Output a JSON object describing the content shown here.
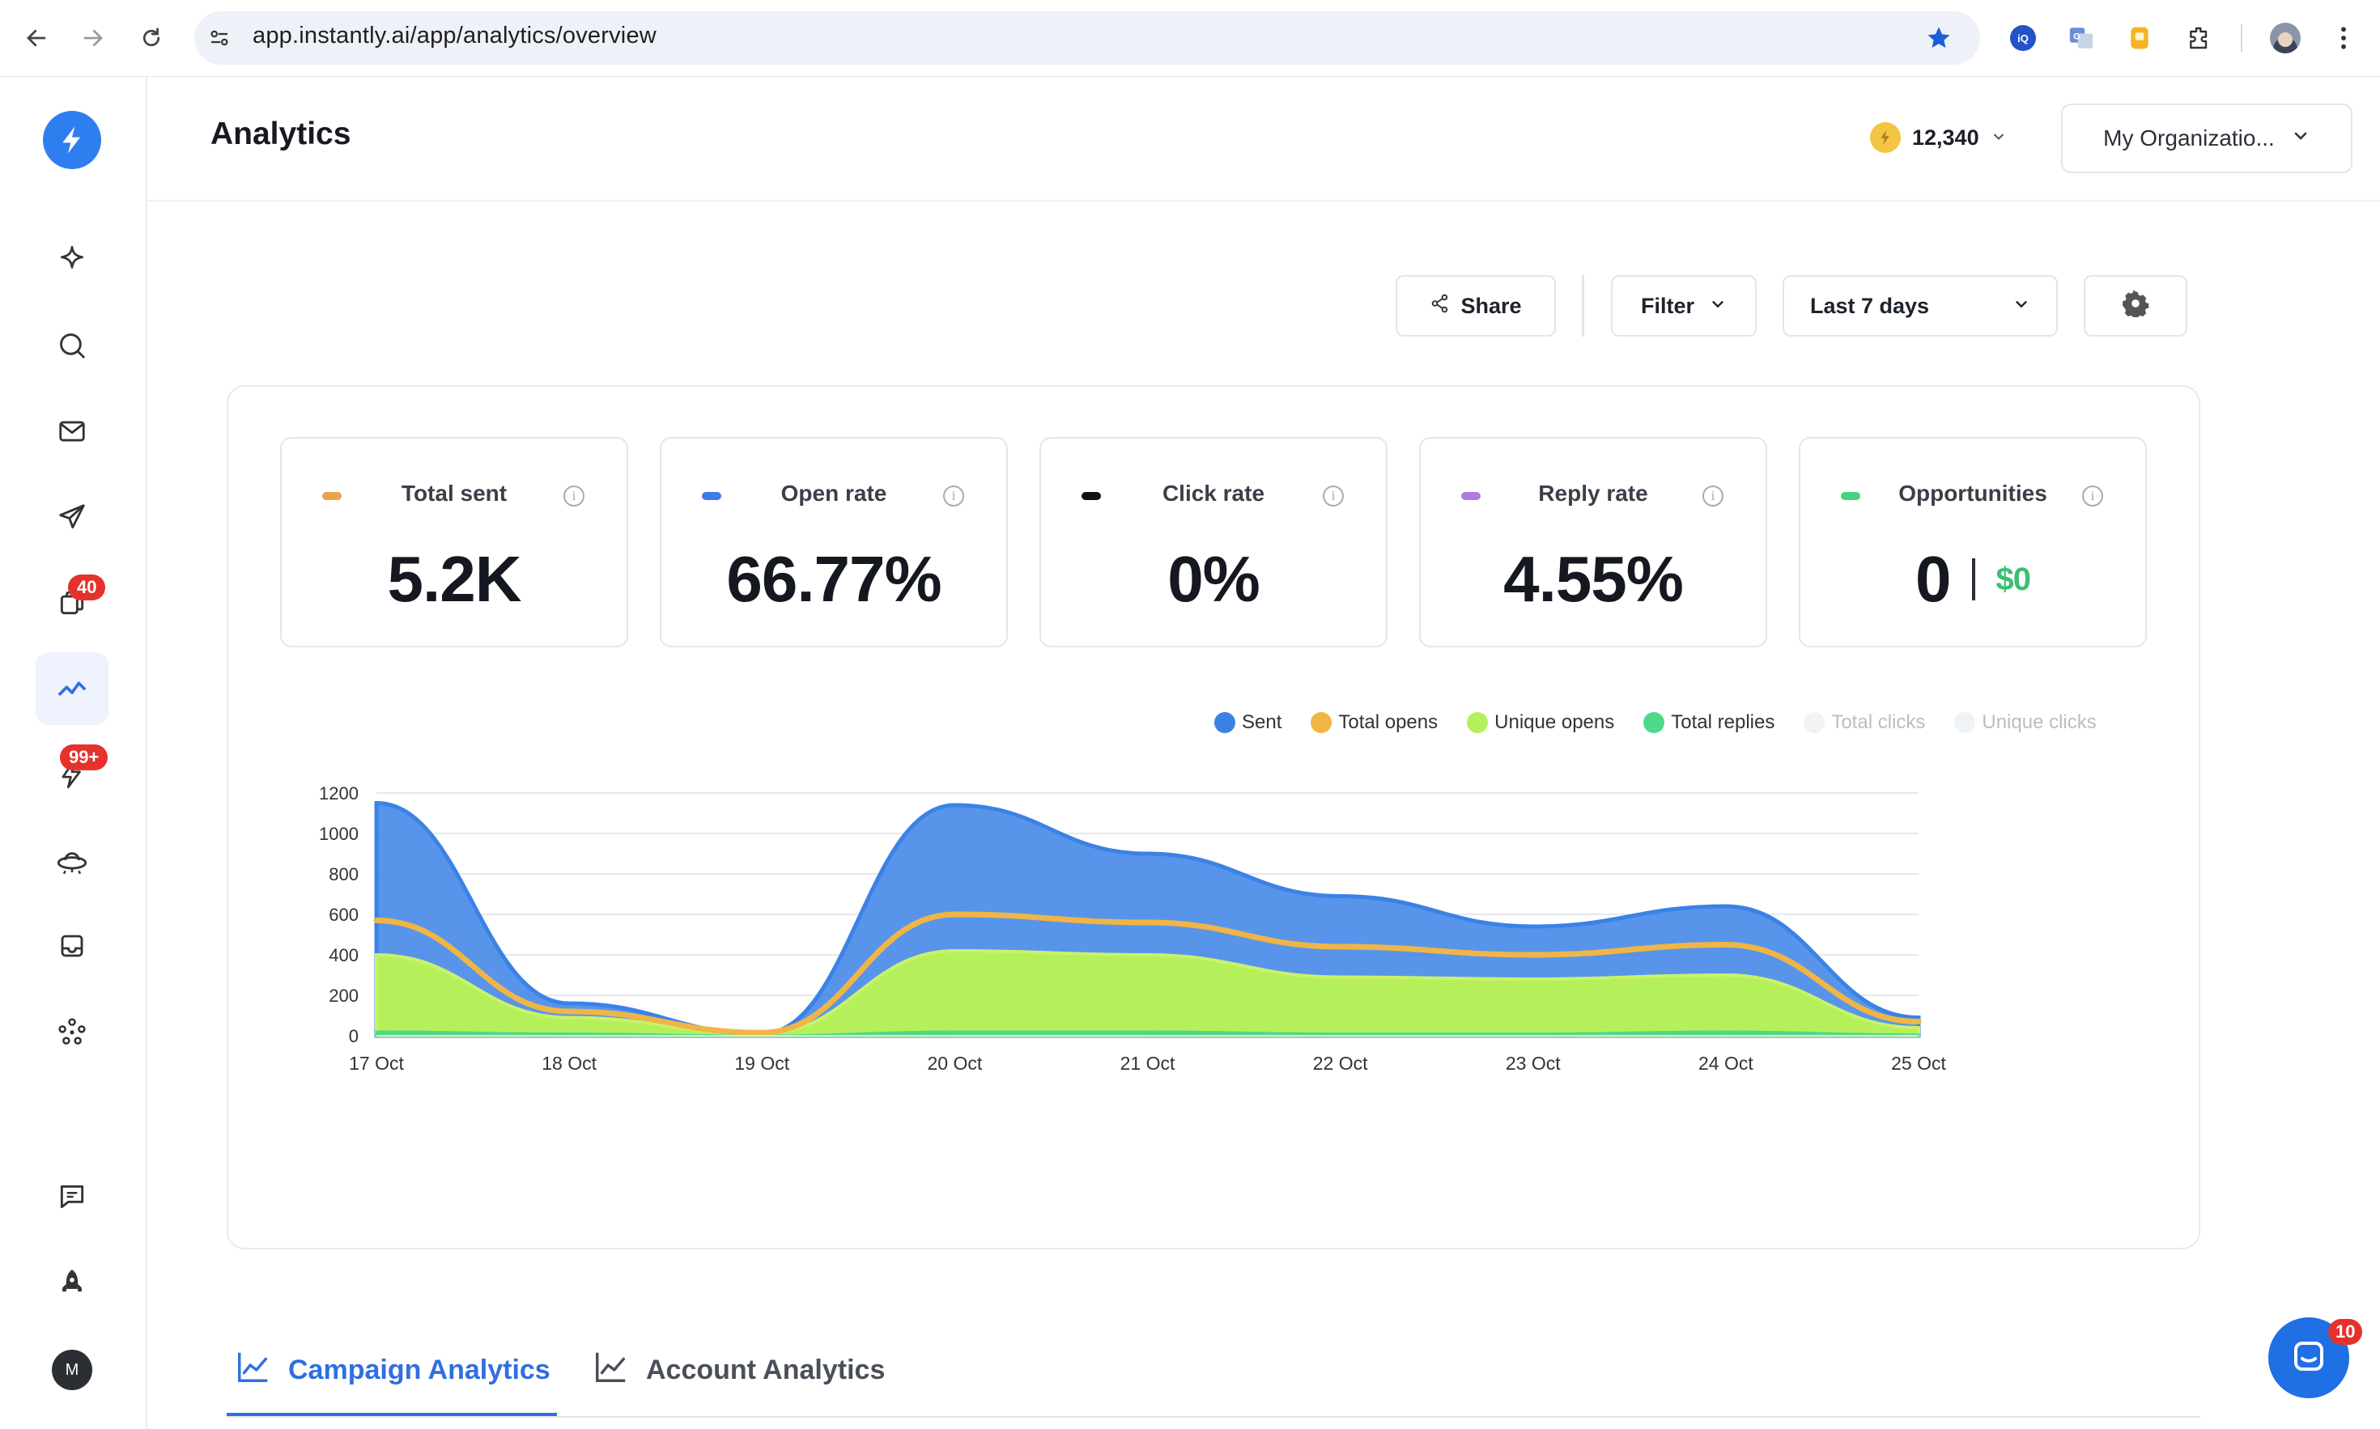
{
  "browser": {
    "url": "app.instantly.ai/app/analytics/overview"
  },
  "sidebar": {
    "badges": {
      "unibox": "40",
      "notifications": "99+"
    },
    "avatar_initial": "M"
  },
  "header": {
    "title": "Analytics",
    "credits": "12,340",
    "organization": "My Organizatio..."
  },
  "toolbar": {
    "share_label": "Share",
    "filter_label": "Filter",
    "date_range": "Last 7 days"
  },
  "stats": [
    {
      "label": "Total sent",
      "value": "5.2K",
      "color": "#e8a54b"
    },
    {
      "label": "Open rate",
      "value": "66.77%",
      "color": "#3d7be8"
    },
    {
      "label": "Click rate",
      "value": "0%",
      "color": "#111111"
    },
    {
      "label": "Reply rate",
      "value": "4.55%",
      "color": "#b07be0"
    },
    {
      "label": "Opportunities",
      "value": "0",
      "secondary": "$0",
      "color": "#45d37f"
    }
  ],
  "chart_data": {
    "type": "area",
    "x": [
      "17 Oct",
      "18 Oct",
      "19 Oct",
      "20 Oct",
      "21 Oct",
      "22 Oct",
      "23 Oct",
      "24 Oct",
      "25 Oct"
    ],
    "ylim": [
      0,
      1200
    ],
    "yticks": [
      0,
      200,
      400,
      600,
      800,
      1000,
      1200
    ],
    "grid": true,
    "legend_position": "top-right",
    "series": [
      {
        "name": "Sent",
        "color": "#3b82e6",
        "values": [
          1150,
          160,
          10,
          1140,
          900,
          690,
          540,
          640,
          90
        ]
      },
      {
        "name": "Total opens",
        "color": "#f0b545",
        "values": [
          570,
          120,
          15,
          600,
          560,
          440,
          400,
          450,
          70
        ]
      },
      {
        "name": "Unique opens",
        "color": "#b5f05a",
        "values": [
          400,
          90,
          10,
          420,
          400,
          290,
          280,
          300,
          40
        ]
      },
      {
        "name": "Total replies",
        "color": "#4fd98a",
        "values": [
          20,
          10,
          0,
          20,
          20,
          10,
          10,
          20,
          5
        ]
      },
      {
        "name": "Total clicks",
        "color": "#d9dde3",
        "values": [
          0,
          0,
          0,
          0,
          0,
          0,
          0,
          0,
          0
        ]
      },
      {
        "name": "Unique clicks",
        "color": "#dde3ea",
        "values": [
          0,
          0,
          0,
          0,
          0,
          0,
          0,
          0,
          0
        ]
      }
    ]
  },
  "tabs": [
    {
      "label": "Campaign Analytics",
      "active": true
    },
    {
      "label": "Account Analytics",
      "active": false
    }
  ],
  "chat": {
    "badge": "10"
  }
}
